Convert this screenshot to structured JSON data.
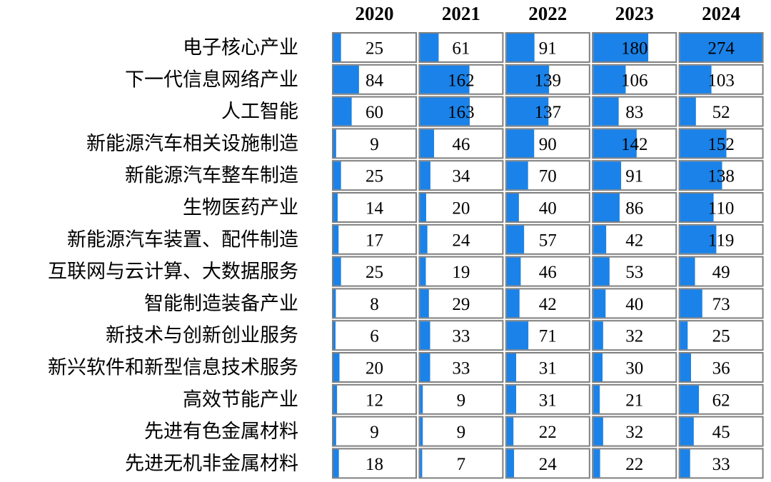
{
  "colors": {
    "bar": "#1a82e8",
    "cell_border": "#7f7f7f",
    "text": "#000000"
  },
  "chart_data": {
    "type": "table",
    "columns": [
      "2020",
      "2021",
      "2022",
      "2023",
      "2024"
    ],
    "rows": [
      "电子核心产业",
      "下一代信息网络产业",
      "人工智能",
      "新能源汽车相关设施制造",
      "新能源汽车整车制造",
      "生物医药产业",
      "新能源汽车装置、配件制造",
      "互联网与云计算、大数据服务",
      "智能制造装备产业",
      "新技术与创新创业服务",
      "新兴软件和新型信息技术服务",
      "高效节能产业",
      "先进有色金属材料",
      "先进无机非金属材料"
    ],
    "values": [
      [
        25,
        61,
        91,
        180,
        274
      ],
      [
        84,
        162,
        139,
        106,
        103
      ],
      [
        60,
        163,
        137,
        83,
        52
      ],
      [
        9,
        46,
        90,
        142,
        152
      ],
      [
        25,
        34,
        70,
        91,
        138
      ],
      [
        14,
        20,
        40,
        86,
        110
      ],
      [
        17,
        24,
        57,
        42,
        119
      ],
      [
        25,
        19,
        46,
        53,
        49
      ],
      [
        8,
        29,
        42,
        40,
        73
      ],
      [
        6,
        33,
        71,
        32,
        25
      ],
      [
        20,
        33,
        31,
        30,
        36
      ],
      [
        12,
        9,
        31,
        21,
        62
      ],
      [
        9,
        9,
        22,
        32,
        45
      ],
      [
        18,
        7,
        24,
        22,
        33
      ]
    ],
    "bar_max": 274
  }
}
